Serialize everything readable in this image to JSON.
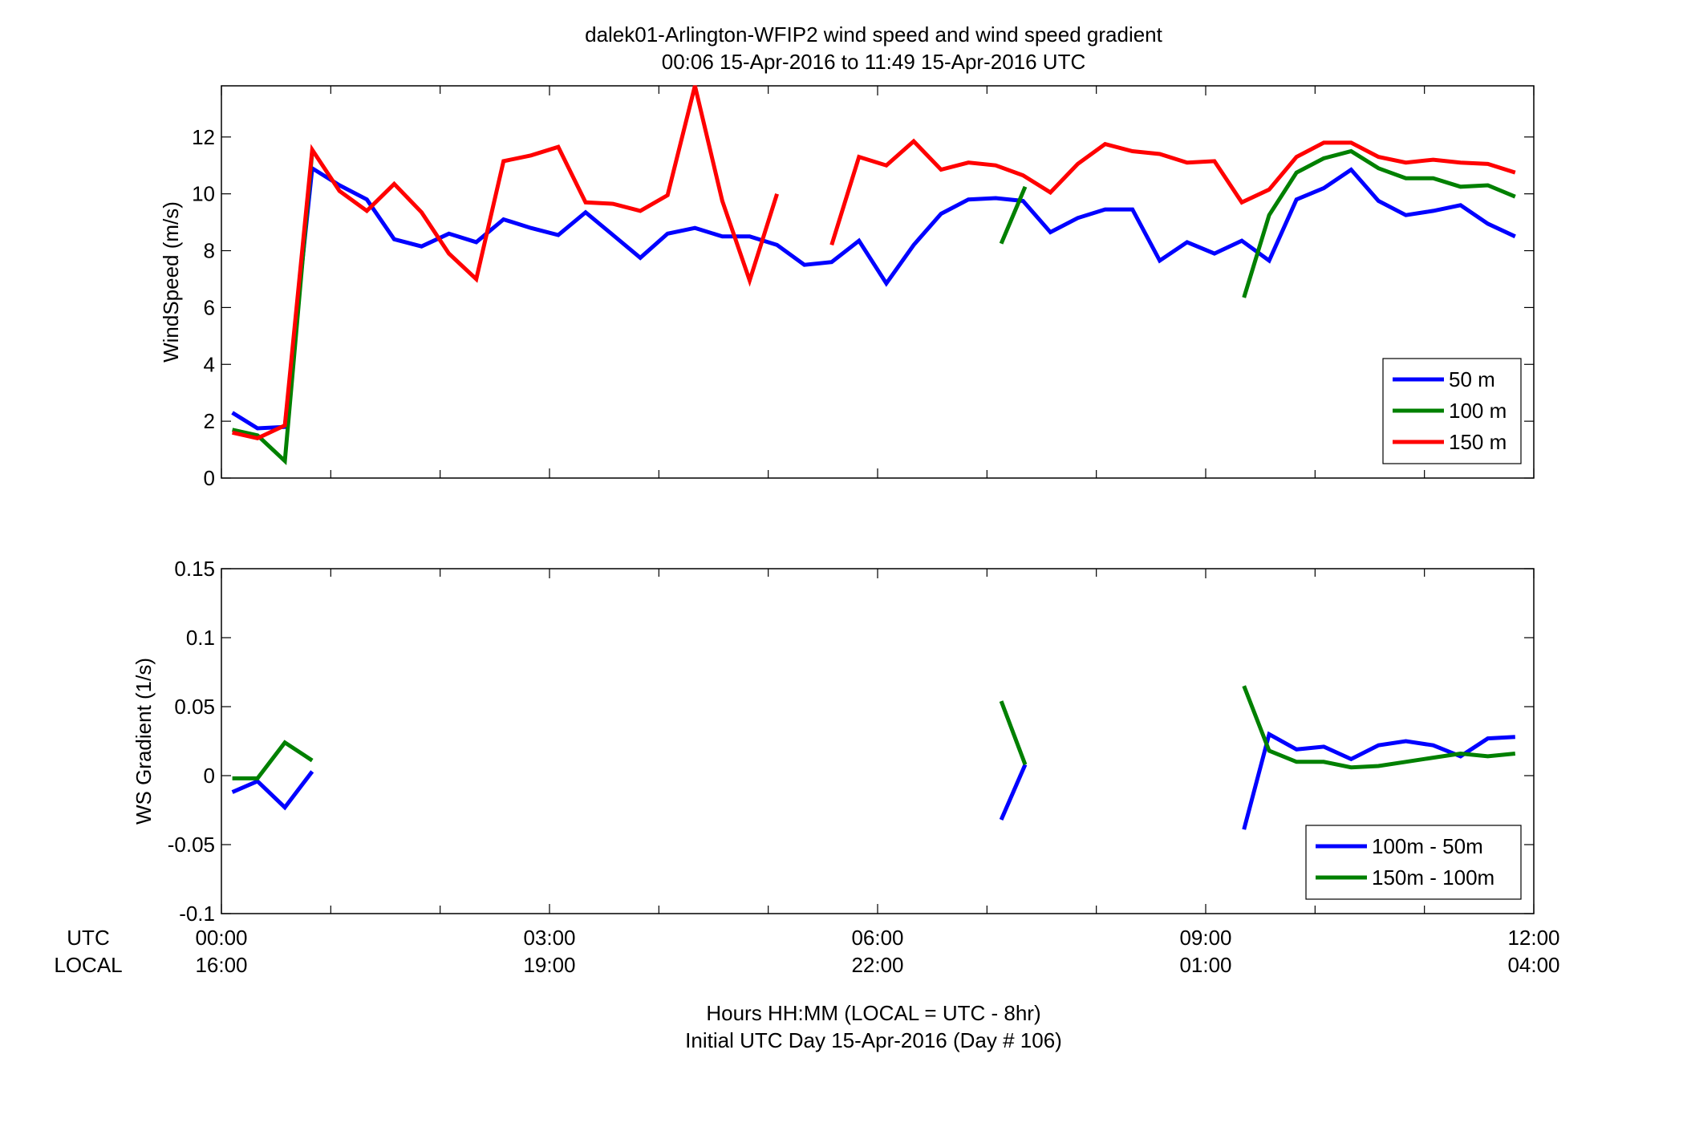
{
  "title": {
    "line1": "dalek01-Arlington-WFIP2  wind speed and wind speed gradient",
    "line2": "00:06 15-Apr-2016 to 11:49 15-Apr-2016  UTC"
  },
  "footer": {
    "line1": "Hours HH:MM  (LOCAL = UTC - 8hr)",
    "line2": "Initial UTC Day 15-Apr-2016 (Day # 106)"
  },
  "row_labels": {
    "utc": "UTC",
    "local": "LOCAL"
  },
  "colors": {
    "blue": "#0000ff",
    "green": "#008000",
    "red": "#ff0000"
  },
  "chart_data": [
    {
      "type": "line",
      "ylabel": "WindSpeed (m/s)",
      "xlim": [
        0,
        12
      ],
      "ylim": [
        0,
        13.8
      ],
      "yticks": [
        0,
        2,
        4,
        6,
        8,
        10,
        12
      ],
      "x_ticks_utc": [
        "00:00",
        "03:00",
        "06:00",
        "09:00",
        "12:00"
      ],
      "x_ticks_local": [
        "16:00",
        "19:00",
        "22:00",
        "01:00",
        "04:00"
      ],
      "legend_position": "bottom-right",
      "series": [
        {
          "name": "50 m",
          "color": "#0000ff",
          "segments": [
            [
              [
                0.1,
                2.3
              ],
              [
                0.33,
                1.75
              ],
              [
                0.58,
                1.8
              ],
              [
                0.83,
                10.9
              ],
              [
                1.08,
                10.3
              ],
              [
                1.33,
                9.8
              ],
              [
                1.58,
                8.4
              ],
              [
                1.83,
                8.15
              ],
              [
                2.08,
                8.6
              ],
              [
                2.33,
                8.3
              ],
              [
                2.58,
                9.1
              ],
              [
                2.83,
                8.8
              ],
              [
                3.08,
                8.55
              ],
              [
                3.33,
                9.35
              ],
              [
                3.58,
                8.55
              ],
              [
                3.83,
                7.75
              ],
              [
                4.08,
                8.6
              ],
              [
                4.33,
                8.8
              ],
              [
                4.58,
                8.5
              ],
              [
                4.83,
                8.5
              ],
              [
                5.08,
                8.2
              ],
              [
                5.33,
                7.5
              ],
              [
                5.58,
                7.6
              ],
              [
                5.83,
                8.35
              ],
              [
                6.08,
                6.85
              ],
              [
                6.33,
                8.2
              ],
              [
                6.58,
                9.3
              ],
              [
                6.83,
                9.8
              ],
              [
                7.08,
                9.85
              ],
              [
                7.33,
                9.75
              ],
              [
                7.58,
                8.65
              ],
              [
                7.83,
                9.15
              ],
              [
                8.08,
                9.45
              ],
              [
                8.33,
                9.45
              ],
              [
                8.58,
                7.65
              ],
              [
                8.83,
                8.3
              ],
              [
                9.08,
                7.9
              ],
              [
                9.33,
                8.35
              ],
              [
                9.58,
                7.65
              ],
              [
                9.83,
                9.8
              ],
              [
                10.08,
                10.2
              ],
              [
                10.33,
                10.85
              ],
              [
                10.58,
                9.75
              ],
              [
                10.83,
                9.25
              ],
              [
                11.08,
                9.4
              ],
              [
                11.33,
                9.6
              ],
              [
                11.58,
                8.95
              ],
              [
                11.83,
                8.5
              ]
            ]
          ]
        },
        {
          "name": "100 m",
          "color": "#008000",
          "segments": [
            [
              [
                0.1,
                1.7
              ],
              [
                0.33,
                1.5
              ],
              [
                0.58,
                0.6
              ],
              [
                0.83,
                11.5
              ]
            ],
            [
              [
                7.13,
                8.25
              ],
              [
                7.35,
                10.25
              ]
            ],
            [
              [
                9.35,
                6.35
              ],
              [
                9.58,
                9.25
              ],
              [
                9.83,
                10.75
              ],
              [
                10.08,
                11.25
              ],
              [
                10.33,
                11.5
              ],
              [
                10.58,
                10.9
              ],
              [
                10.83,
                10.55
              ],
              [
                11.08,
                10.55
              ],
              [
                11.33,
                10.25
              ],
              [
                11.58,
                10.3
              ],
              [
                11.83,
                9.9
              ]
            ]
          ]
        },
        {
          "name": "150 m",
          "color": "#ff0000",
          "segments": [
            [
              [
                0.1,
                1.6
              ],
              [
                0.33,
                1.4
              ],
              [
                0.58,
                1.85
              ],
              [
                0.83,
                11.55
              ],
              [
                1.08,
                10.1
              ],
              [
                1.33,
                9.4
              ],
              [
                1.58,
                10.35
              ],
              [
                1.83,
                9.35
              ],
              [
                2.08,
                7.9
              ],
              [
                2.33,
                7.0
              ],
              [
                2.58,
                11.15
              ],
              [
                2.83,
                11.35
              ],
              [
                3.08,
                11.65
              ],
              [
                3.33,
                9.7
              ],
              [
                3.58,
                9.65
              ],
              [
                3.83,
                9.4
              ],
              [
                4.08,
                9.95
              ],
              [
                4.33,
                13.8
              ],
              [
                4.58,
                9.75
              ],
              [
                4.83,
                6.95
              ],
              [
                5.08,
                10.0
              ]
            ],
            [
              [
                5.58,
                8.2
              ],
              [
                5.83,
                11.3
              ],
              [
                6.08,
                11.0
              ],
              [
                6.33,
                11.85
              ],
              [
                6.58,
                10.85
              ],
              [
                6.83,
                11.1
              ],
              [
                7.08,
                11.0
              ],
              [
                7.33,
                10.65
              ],
              [
                7.58,
                10.05
              ],
              [
                7.83,
                11.05
              ],
              [
                8.08,
                11.75
              ],
              [
                8.33,
                11.5
              ],
              [
                8.58,
                11.4
              ],
              [
                8.83,
                11.1
              ],
              [
                9.08,
                11.15
              ],
              [
                9.33,
                9.7
              ],
              [
                9.58,
                10.15
              ],
              [
                9.83,
                11.3
              ],
              [
                10.08,
                11.8
              ],
              [
                10.33,
                11.8
              ],
              [
                10.58,
                11.3
              ],
              [
                10.83,
                11.1
              ],
              [
                11.08,
                11.2
              ],
              [
                11.33,
                11.1
              ],
              [
                11.58,
                11.05
              ],
              [
                11.83,
                10.75
              ]
            ]
          ]
        }
      ]
    },
    {
      "type": "line",
      "ylabel": "WS Gradient (1/s)",
      "xlim": [
        0,
        12
      ],
      "ylim": [
        -0.1,
        0.15
      ],
      "yticks": [
        -0.1,
        -0.05,
        0,
        0.05,
        0.1,
        0.15
      ],
      "ytick_labels": [
        "-0.1",
        "-0.05",
        "0",
        "0.05",
        "0.1",
        "0.15"
      ],
      "x_ticks_utc": [
        "00:00",
        "03:00",
        "06:00",
        "09:00",
        "12:00"
      ],
      "x_ticks_local": [
        "16:00",
        "19:00",
        "22:00",
        "01:00",
        "04:00"
      ],
      "legend_position": "bottom-right",
      "series": [
        {
          "name": "100m - 50m",
          "color": "#0000ff",
          "segments": [
            [
              [
                0.1,
                -0.012
              ],
              [
                0.33,
                -0.004
              ],
              [
                0.58,
                -0.023
              ],
              [
                0.83,
                0.003
              ]
            ],
            [
              [
                7.13,
                -0.032
              ],
              [
                7.35,
                0.008
              ]
            ],
            [
              [
                9.35,
                -0.039
              ],
              [
                9.58,
                0.03
              ],
              [
                9.83,
                0.019
              ],
              [
                10.08,
                0.021
              ],
              [
                10.33,
                0.012
              ],
              [
                10.58,
                0.022
              ],
              [
                10.83,
                0.025
              ],
              [
                11.08,
                0.022
              ],
              [
                11.33,
                0.014
              ],
              [
                11.58,
                0.027
              ],
              [
                11.83,
                0.028
              ]
            ]
          ]
        },
        {
          "name": "150m - 100m",
          "color": "#008000",
          "segments": [
            [
              [
                0.1,
                -0.002
              ],
              [
                0.33,
                -0.002
              ],
              [
                0.58,
                0.024
              ],
              [
                0.83,
                0.011
              ]
            ],
            [
              [
                7.13,
                0.054
              ],
              [
                7.35,
                0.008
              ]
            ],
            [
              [
                9.35,
                0.065
              ],
              [
                9.58,
                0.018
              ],
              [
                9.83,
                0.01
              ],
              [
                10.08,
                0.01
              ],
              [
                10.33,
                0.006
              ],
              [
                10.58,
                0.007
              ],
              [
                10.83,
                0.01
              ],
              [
                11.08,
                0.013
              ],
              [
                11.33,
                0.016
              ],
              [
                11.58,
                0.014
              ],
              [
                11.83,
                0.016
              ]
            ]
          ]
        }
      ]
    }
  ]
}
